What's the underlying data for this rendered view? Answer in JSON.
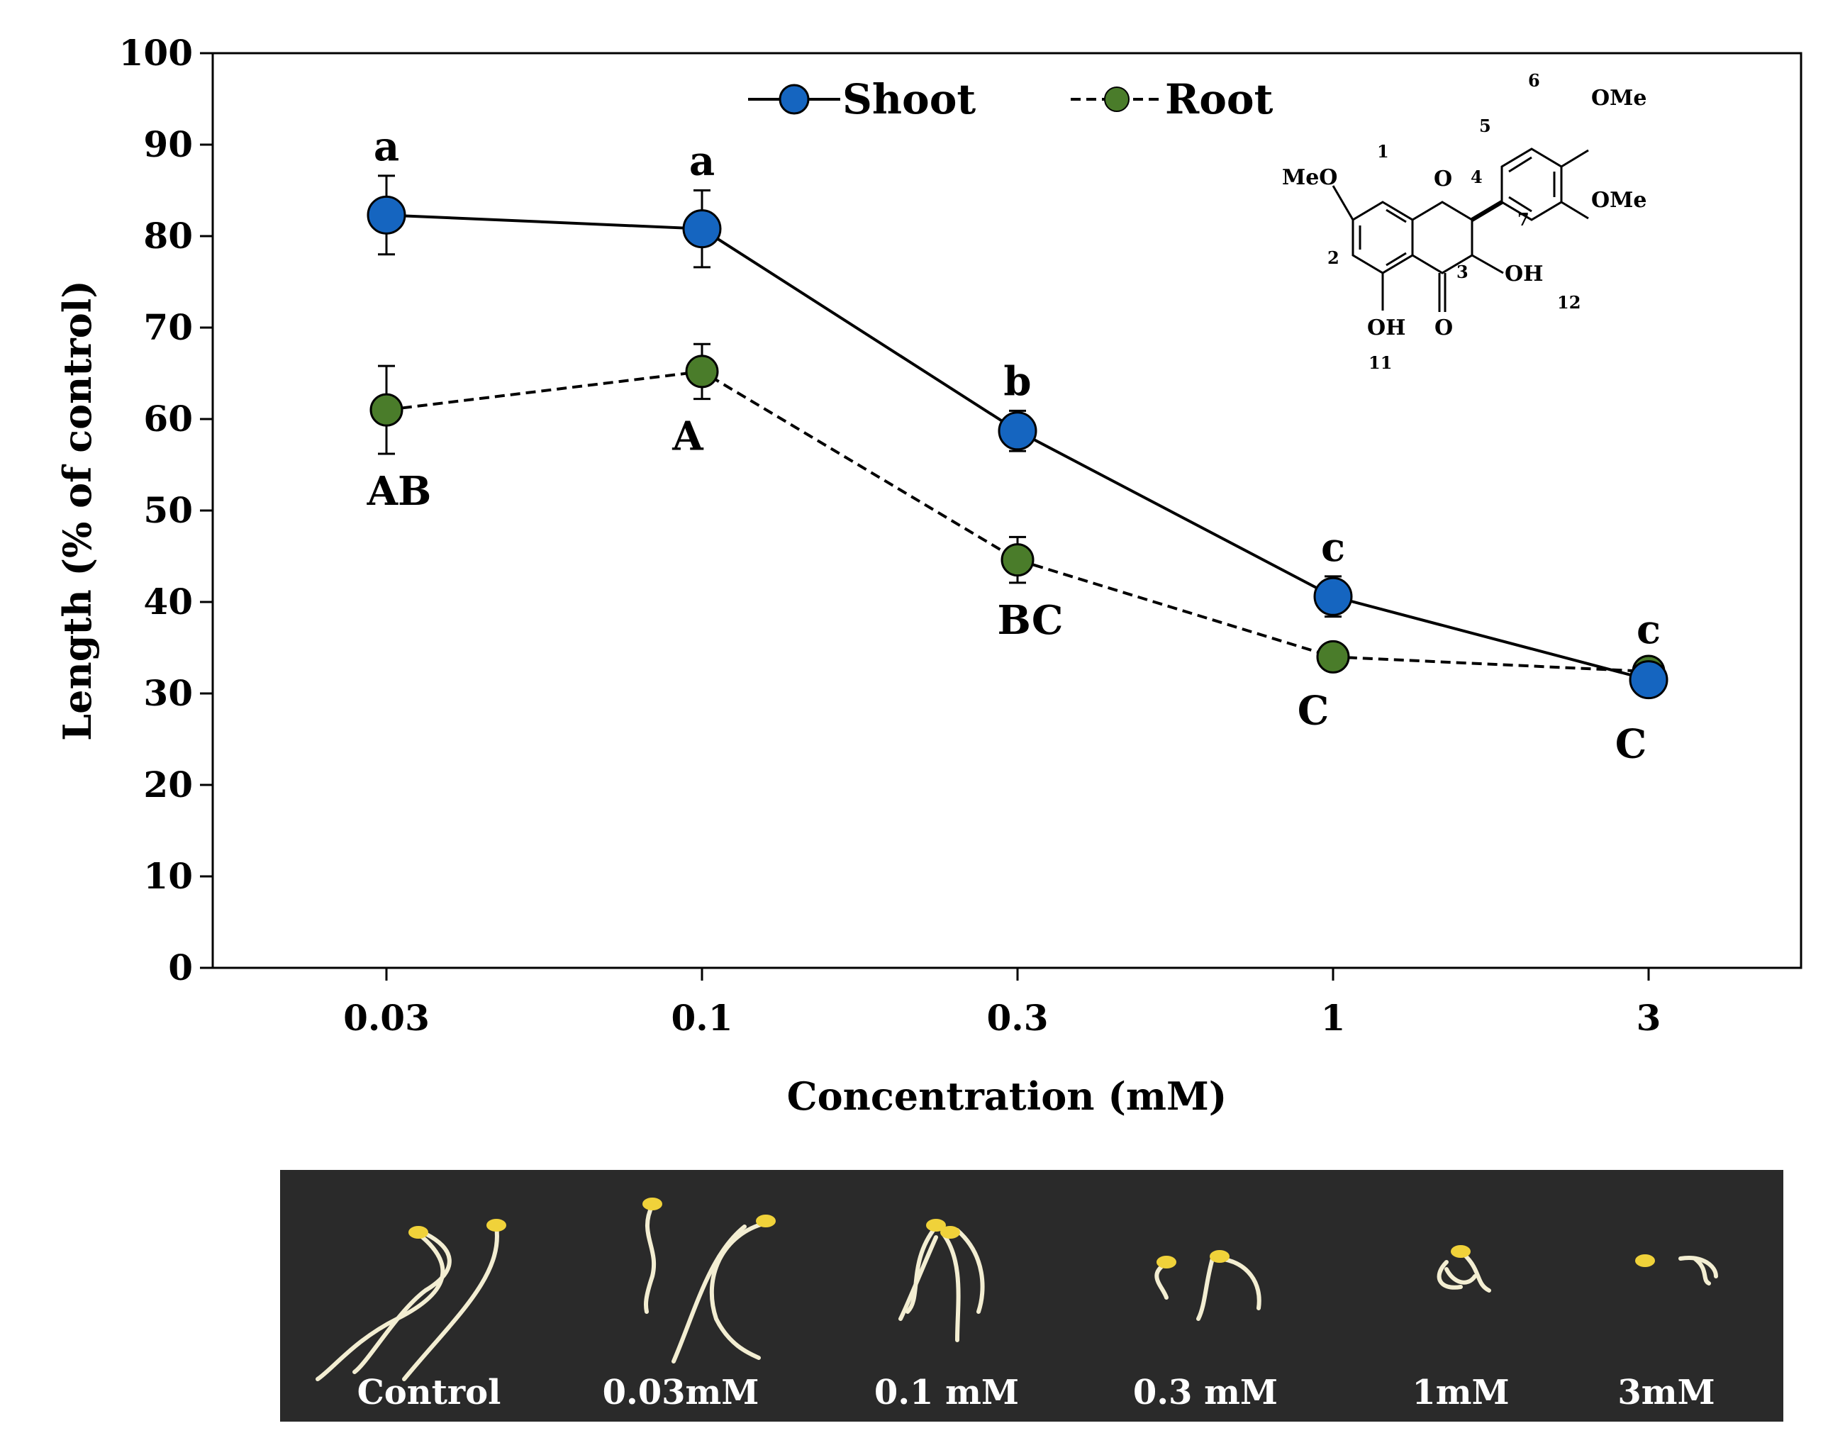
{
  "chart_data": {
    "type": "line",
    "xlabel": "Concentration (mM)",
    "ylabel": "Length (% of control)",
    "categories": [
      "0.03",
      "0.1",
      "0.3",
      "1",
      "3"
    ],
    "ylim": [
      0,
      100
    ],
    "yticks": [
      "0",
      "10",
      "20",
      "30",
      "40",
      "50",
      "60",
      "70",
      "80",
      "90",
      "100"
    ],
    "grid": false,
    "legend_position": "top-center",
    "series": [
      {
        "name": "Shoot",
        "color": "#1565c0",
        "line_style": "solid",
        "values": [
          82.3,
          80.8,
          58.7,
          40.6,
          31.5
        ],
        "errors": [
          4.3,
          4.2,
          2.2,
          2.2,
          1.2
        ],
        "letters": [
          "a",
          "a",
          "b",
          "c",
          "c"
        ]
      },
      {
        "name": "Root",
        "color": "#4a7c2a",
        "line_style": "dashed",
        "values": [
          61.0,
          65.2,
          44.6,
          34.0,
          32.4
        ],
        "errors": [
          4.8,
          3.0,
          2.5,
          1.2,
          1.0
        ],
        "letters": [
          "AB",
          "A",
          "BC",
          "C",
          "C"
        ]
      }
    ]
  },
  "structure": {
    "labels": [
      "MeO",
      "O",
      "OMe",
      "OMe",
      "OH",
      "OH",
      "O"
    ],
    "numbers": [
      "1",
      "2",
      "3",
      "4",
      "5",
      "6",
      "7",
      "11",
      "12"
    ]
  },
  "photo": {
    "labels": [
      "Control",
      "0.03mM",
      "0.1 mM",
      "0.3 mM",
      "1mM",
      "3mM"
    ]
  }
}
